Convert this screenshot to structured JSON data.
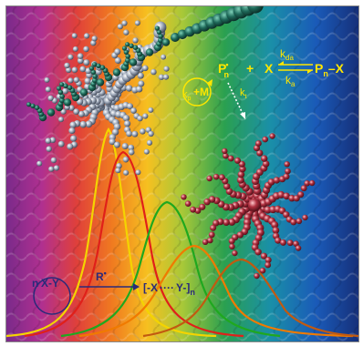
{
  "scheme": {
    "pn_radical": "P",
    "pn_radical_sub": "n",
    "pn_radical_sup": "•",
    "plus": "+",
    "x": "X",
    "kda_base": "k",
    "kda_sub": "da",
    "ka_base": "k",
    "ka_sub": "a",
    "product": "P",
    "product_sub": "n",
    "product_tail": "–X",
    "kp_base": "k",
    "kp_sub": "p",
    "monomer": "+M",
    "kt_base": "k",
    "kt_sub": "t"
  },
  "polymer_scheme": {
    "n": "n",
    "monomer_xy": "X-Y",
    "initiator": "R",
    "initiator_sup": "•",
    "chain_open": "[-X",
    "chain_dots": "····",
    "chain_close": "Y-]",
    "chain_sub": "n"
  },
  "colors": {
    "curve_yellow": "#f4d400",
    "curve_red": "#e0201a",
    "curve_green": "#1fa81f",
    "curve_orange": "#f07a00",
    "curve_brown": "#c25a10",
    "star_polymer": "#b03040",
    "gray_polymer": "#9aa4b4",
    "teal_polymer": "#1f6a5a",
    "scheme_text": "#ffe600"
  }
}
